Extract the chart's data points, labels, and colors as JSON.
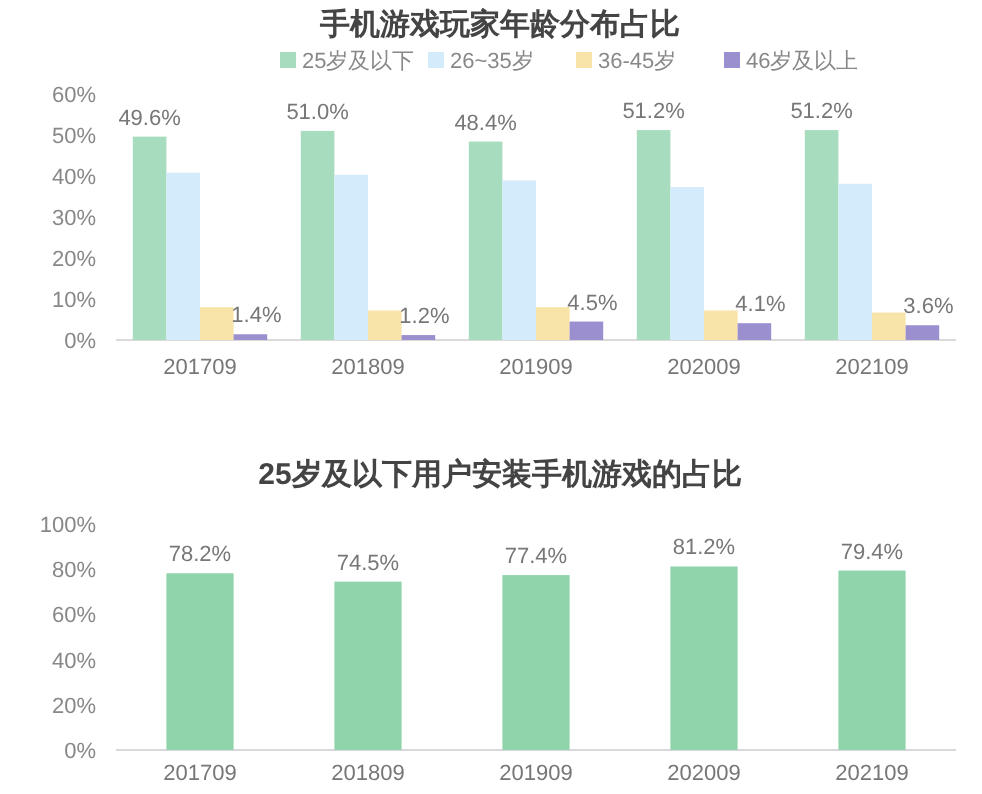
{
  "chart_data": [
    {
      "type": "bar",
      "title": "手机游戏玩家年龄分布占比",
      "categories": [
        "201709",
        "201809",
        "201909",
        "202009",
        "202109"
      ],
      "series": [
        {
          "name": "25岁及以下",
          "color": "#a8dcbf",
          "values": [
            49.6,
            51.0,
            48.4,
            51.2,
            51.2
          ],
          "value_labels": [
            "49.6%",
            "51.0%",
            "48.4%",
            "51.2%",
            "51.2%"
          ]
        },
        {
          "name": "26~35岁",
          "color": "#d3ebfa",
          "values": [
            40.8,
            40.3,
            38.9,
            37.3,
            38.1
          ]
        },
        {
          "name": "36-45岁",
          "color": "#f8e3a8",
          "values": [
            8.0,
            7.2,
            8.0,
            7.2,
            6.7
          ]
        },
        {
          "name": "46岁及以上",
          "color": "#9b8fd0",
          "values": [
            1.4,
            1.2,
            4.5,
            4.1,
            3.6
          ],
          "value_labels": [
            "1.4%",
            "1.2%",
            "4.5%",
            "4.1%",
            "3.6%"
          ]
        }
      ],
      "ylim": [
        0,
        60
      ],
      "yticks": [
        {
          "value": 0,
          "label": "0%"
        },
        {
          "value": 10,
          "label": "10%"
        },
        {
          "value": 20,
          "label": "20%"
        },
        {
          "value": 30,
          "label": "30%"
        },
        {
          "value": 40,
          "label": "40%"
        },
        {
          "value": 50,
          "label": "50%"
        },
        {
          "value": 60,
          "label": "60%"
        }
      ],
      "legend": "top"
    },
    {
      "type": "bar",
      "title": "25岁及以下用户安装手机游戏的占比",
      "categories": [
        "201709",
        "201809",
        "201909",
        "202009",
        "202109"
      ],
      "values": [
        78.2,
        74.5,
        77.4,
        81.2,
        79.4
      ],
      "color": "#8fd4ab",
      "value_labels": [
        "78.2%",
        "74.5%",
        "77.4%",
        "81.2%",
        "79.4%"
      ],
      "ylim": [
        0,
        100
      ],
      "yticks": [
        {
          "value": 0,
          "label": "0%"
        },
        {
          "value": 20,
          "label": "20%"
        },
        {
          "value": 40,
          "label": "40%"
        },
        {
          "value": 60,
          "label": "60%"
        },
        {
          "value": 80,
          "label": "80%"
        },
        {
          "value": 100,
          "label": "100%"
        }
      ]
    }
  ]
}
